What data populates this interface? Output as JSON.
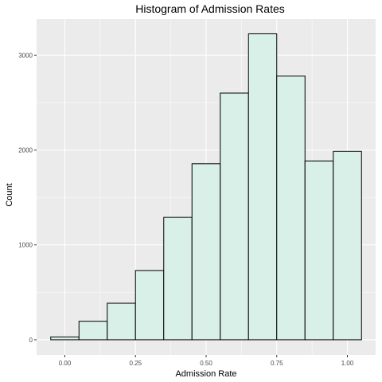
{
  "chart_data": {
    "type": "bar",
    "title": "Histogram of Admission Rates",
    "xlabel": "Admission Rate",
    "ylabel": "Count",
    "bin_width": 0.1,
    "bins": [
      {
        "x": 0.0,
        "count": 30
      },
      {
        "x": 0.1,
        "count": 195
      },
      {
        "x": 0.2,
        "count": 385
      },
      {
        "x": 0.3,
        "count": 730
      },
      {
        "x": 0.4,
        "count": 1290
      },
      {
        "x": 0.5,
        "count": 1855
      },
      {
        "x": 0.6,
        "count": 2600
      },
      {
        "x": 0.7,
        "count": 3225
      },
      {
        "x": 0.8,
        "count": 2780
      },
      {
        "x": 0.9,
        "count": 1885
      },
      {
        "x": 1.0,
        "count": 1985
      }
    ],
    "x_ticks": [
      "0.00",
      "0.25",
      "0.50",
      "0.75",
      "1.00"
    ],
    "y_ticks": [
      "0",
      "1000",
      "2000",
      "3000"
    ],
    "xlim": [
      -0.1,
      1.1
    ],
    "ylim": [
      -160,
      3380
    ],
    "grid": true,
    "bar_fill": "#d9f0e8",
    "bar_stroke": "#000000",
    "panel_background": "#ebebeb",
    "grid_color": "#ffffff"
  }
}
